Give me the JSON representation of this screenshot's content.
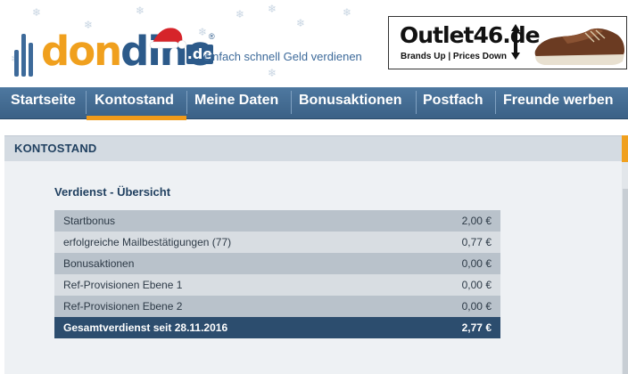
{
  "logo": {
    "part1": "don",
    "part2": "dino",
    "tld": ".de",
    "registered": "®",
    "slogan": "einfach schnell Geld verdienen"
  },
  "ad": {
    "brand": "Outlet46.de",
    "tagline": "Brands Up | Prices Down"
  },
  "nav": {
    "items": [
      {
        "label": "Startseite"
      },
      {
        "label": "Kontostand"
      },
      {
        "label": "Meine Daten"
      },
      {
        "label": "Bonusaktionen"
      },
      {
        "label": "Postfach"
      },
      {
        "label": "Freunde werben"
      }
    ],
    "active": "Kontostand"
  },
  "section": {
    "title": "KONTOSTAND",
    "subtitle": "Verdienst - Übersicht"
  },
  "earnings": {
    "rows": [
      {
        "label": "Startbonus",
        "value": "2,00 €"
      },
      {
        "label": "erfolgreiche Mailbestätigungen (77)",
        "value": "0,77 €"
      },
      {
        "label": "Bonusaktionen",
        "value": "0,00 €"
      },
      {
        "label": "Ref-Provisionen Ebene 1",
        "value": "0,00 €"
      },
      {
        "label": "Ref-Provisionen Ebene 2",
        "value": "0,00 €"
      }
    ],
    "total": {
      "label": "Gesamtverdienst seit 28.11.2016",
      "value": "2,77 €"
    }
  },
  "colors": {
    "nav": "#3b6186",
    "accent": "#f09a1a",
    "total_row": "#2c4d6e"
  }
}
